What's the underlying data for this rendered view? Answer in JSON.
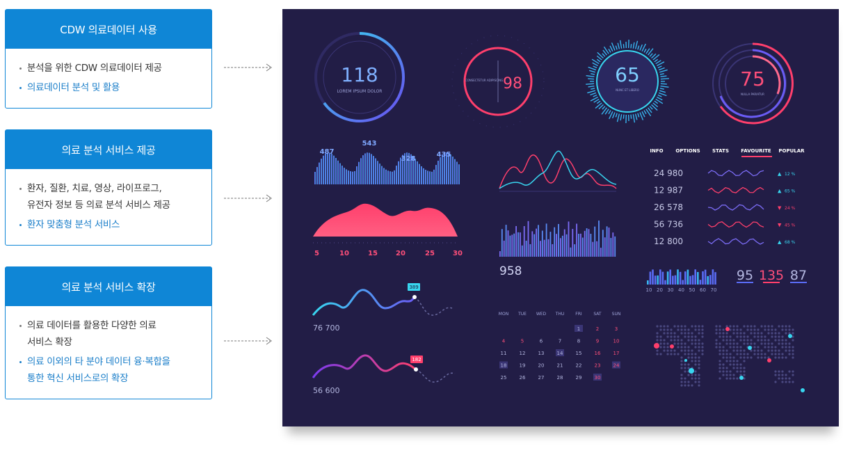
{
  "cards": [
    {
      "title": "CDW 의료데이터 사용",
      "items": [
        {
          "text": "분석을 위한 CDW 의료데이터 제공",
          "highlight": false
        },
        {
          "text": "의료데이터 분석 및 활용",
          "highlight": true
        }
      ]
    },
    {
      "title": "의료 분석 서비스 제공",
      "items": [
        {
          "text": "환자, 질환, 치료, 영상, 라이프로그,\n유전자 정보 등 의료 분석 서비스 제공",
          "highlight": false
        },
        {
          "text": "환자 맞춤형 분석 서비스",
          "highlight": true
        }
      ]
    },
    {
      "title": "의료 분석 서비스 확장",
      "items": [
        {
          "text": "의료 데이터를 활용한 다양한  의료\n서비스 확장",
          "highlight": false
        },
        {
          "text": "의료 이외의 타 분야 데이터 융·복합을\n통한 혁신 서비스로의 확장",
          "highlight": true
        }
      ]
    }
  ],
  "dashboard": {
    "gauges": {
      "g1_value": "118",
      "g1_label": "LOREM IPSUM DOLOR",
      "g2_value": "98",
      "g2_label": "CONSECTETUR ADIPISCING",
      "g3_value": "65",
      "g3_label": "NUNC ET LIBERO",
      "g4_value": "75",
      "g4_label": "NULLA PARIATUR"
    },
    "bar_peaks": [
      "487",
      "543",
      "328",
      "435"
    ],
    "mountain_ticks": [
      "5",
      "10",
      "15",
      "20",
      "25",
      "30"
    ],
    "wave1_value": "76 700",
    "wave1_tag": "389",
    "wave2_value": "56 600",
    "wave2_tag": "182",
    "histogram_value": "958",
    "tabs": [
      "INFO",
      "OPTIONS",
      "STATS",
      "FAVOURITE",
      "POPULAR"
    ],
    "stats": [
      {
        "value": "24 980",
        "pct": "12 %",
        "up": true
      },
      {
        "value": "12 987",
        "pct": "65 %",
        "up": true
      },
      {
        "value": "26 578",
        "pct": "24 %",
        "up": false
      },
      {
        "value": "56 736",
        "pct": "45 %",
        "up": false
      },
      {
        "value": "12 800",
        "pct": "68 %",
        "up": true
      }
    ],
    "mini_bar_axis": [
      "10",
      "20",
      "30",
      "40",
      "50",
      "60",
      "70"
    ],
    "big_numbers": [
      "95",
      "135",
      "87"
    ],
    "calendar": {
      "days": [
        "MON",
        "TUE",
        "WED",
        "THU",
        "FRI",
        "SAT",
        "SUN"
      ],
      "weeks": [
        [
          "",
          "",
          "",
          "",
          "1",
          "2",
          "3"
        ],
        [
          "4",
          "5",
          "6",
          "7",
          "8",
          "9",
          "10"
        ],
        [
          "11",
          "12",
          "13",
          "14",
          "15",
          "16",
          "17"
        ],
        [
          "18",
          "19",
          "20",
          "21",
          "22",
          "23",
          "24"
        ],
        [
          "25",
          "26",
          "27",
          "28",
          "29",
          "30",
          ""
        ]
      ]
    },
    "colors": {
      "bg": "#221d46",
      "blue": "#4fa3ff",
      "cyan": "#38d6f0",
      "red": "#ff3f6c",
      "purple": "#7b6cf5",
      "card_blue": "#0f86d6"
    }
  }
}
